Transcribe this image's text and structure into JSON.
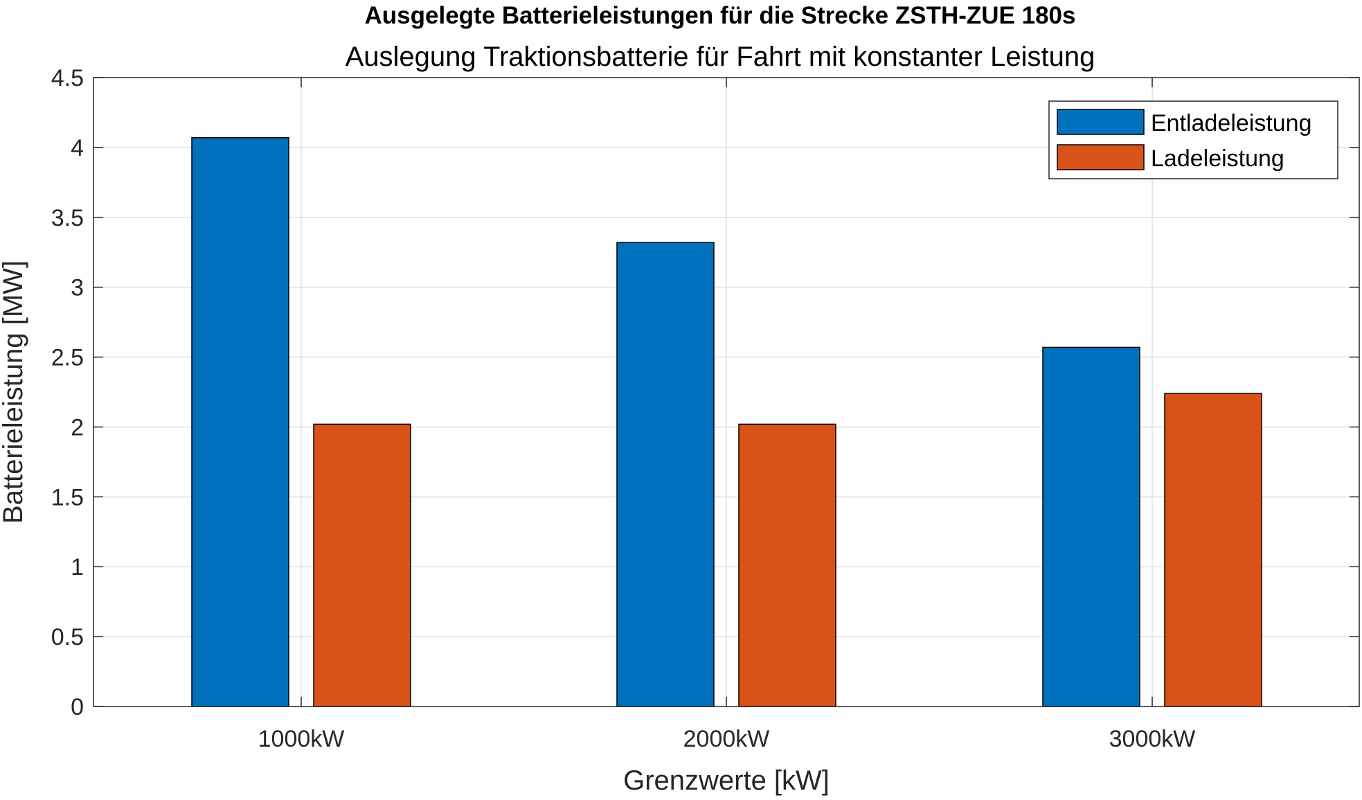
{
  "chart_data": {
    "type": "bar",
    "title": "Ausgelegte Batterieleistungen für die Strecke ZSTH-ZUE 180s",
    "subtitle": "Auslegung Traktionsbatterie für Fahrt mit konstanter Leistung",
    "xlabel": "Grenzwerte [kW]",
    "ylabel": "Batterieleistung [MW]",
    "categories": [
      "1000kW",
      "2000kW",
      "3000kW"
    ],
    "series": [
      {
        "name": "Entladeleistung",
        "color": "#0072BD",
        "values": [
          4.07,
          3.32,
          2.57
        ]
      },
      {
        "name": "Ladeleistung",
        "color": "#D95319",
        "values": [
          2.02,
          2.02,
          2.24
        ]
      }
    ],
    "ylim": [
      0,
      4.5
    ],
    "yticks": [
      "0",
      "0.5",
      "1",
      "1.5",
      "2",
      "2.5",
      "3",
      "3.5",
      "4",
      "4.5"
    ],
    "grid": true,
    "legend_position": "top-right"
  }
}
